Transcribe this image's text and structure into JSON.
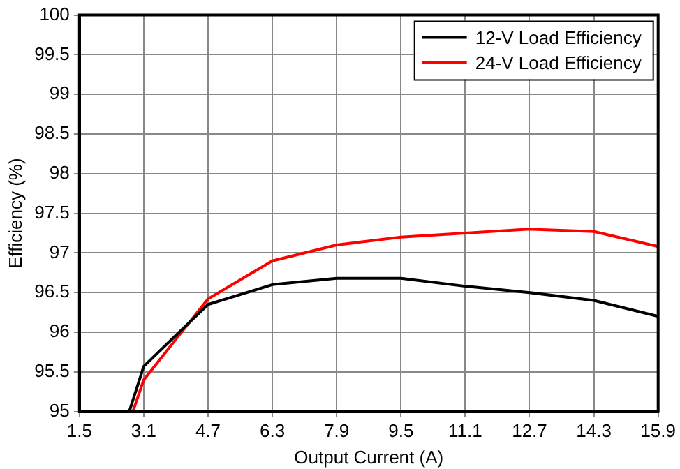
{
  "chart_data": {
    "type": "line",
    "xlabel": "Output Current (A)",
    "ylabel": "Efficiency (%)",
    "xlim": [
      1.5,
      15.9
    ],
    "xticks": [
      1.5,
      3.1,
      4.7,
      6.3,
      7.9,
      9.5,
      11.1,
      12.7,
      14.3,
      15.9
    ],
    "ylim": [
      95,
      100
    ],
    "yticks": [
      95,
      95.5,
      96,
      96.5,
      97,
      97.5,
      98,
      98.5,
      99,
      99.5,
      100
    ],
    "grid": true,
    "legend": "top right",
    "marker": "none",
    "line_style": "solid",
    "series": [
      {
        "name": "12-V Load Efficiency",
        "color": "#000000",
        "x": [
          2.74,
          3.1,
          4.7,
          6.3,
          7.9,
          9.5,
          11.1,
          12.7,
          14.3,
          15.9
        ],
        "values": [
          95,
          95.57,
          96.35,
          96.6,
          96.68,
          96.68,
          96.58,
          96.5,
          96.4,
          96.2
        ]
      },
      {
        "name": "24-V Load Efficiency",
        "color": "#ff0000",
        "x": [
          2.83,
          3.1,
          4.7,
          6.3,
          7.9,
          9.5,
          11.1,
          12.7,
          14.3,
          15.9
        ],
        "values": [
          95,
          95.4,
          96.42,
          96.9,
          97.1,
          97.2,
          97.25,
          97.3,
          97.27,
          97.08
        ]
      }
    ]
  }
}
